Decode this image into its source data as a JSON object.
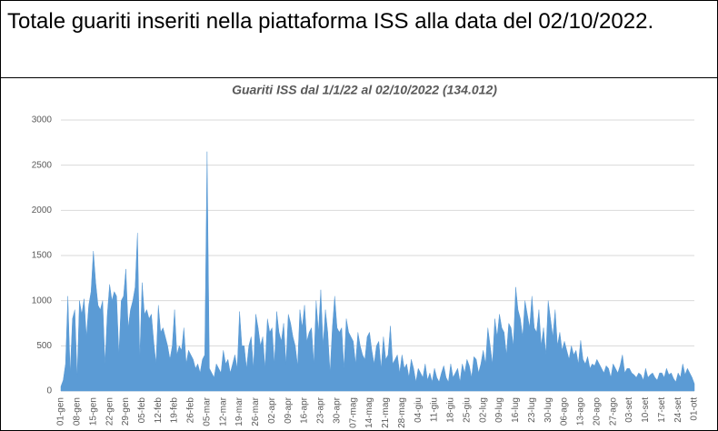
{
  "header": "Totale guariti inseriti nella piattaforma ISS alla data del 02/10/2022.",
  "chart_data": {
    "type": "area",
    "title": "Guariti ISS dal 1/1/22 al 02/10/2022 (134.012)",
    "color": "#5b9bd5",
    "grid": true,
    "ylim": [
      0,
      3000
    ],
    "yticks": [
      0,
      500,
      1000,
      1500,
      2000,
      2500,
      3000
    ],
    "categories": [
      "01-gen",
      null,
      null,
      null,
      null,
      null,
      null,
      "08-gen",
      null,
      null,
      null,
      null,
      null,
      null,
      "15-gen",
      null,
      null,
      null,
      null,
      null,
      null,
      "22-gen",
      null,
      null,
      null,
      null,
      null,
      null,
      "29-gen",
      null,
      null,
      null,
      null,
      null,
      null,
      "05-feb",
      null,
      null,
      null,
      null,
      null,
      null,
      "12-feb",
      null,
      null,
      null,
      null,
      null,
      null,
      "19-feb",
      null,
      null,
      null,
      null,
      null,
      null,
      "26-feb",
      null,
      null,
      null,
      null,
      null,
      null,
      "05-mar",
      null,
      null,
      null,
      null,
      null,
      null,
      "12-mar",
      null,
      null,
      null,
      null,
      null,
      null,
      "19-mar",
      null,
      null,
      null,
      null,
      null,
      null,
      "26-mar",
      null,
      null,
      null,
      null,
      null,
      null,
      "02-apr",
      null,
      null,
      null,
      null,
      null,
      null,
      "09-apr",
      null,
      null,
      null,
      null,
      null,
      null,
      "16-apr",
      null,
      null,
      null,
      null,
      null,
      null,
      "23-apr",
      null,
      null,
      null,
      null,
      null,
      null,
      "30-apr",
      null,
      null,
      null,
      null,
      null,
      null,
      "07-mag",
      null,
      null,
      null,
      null,
      null,
      null,
      "14-mag",
      null,
      null,
      null,
      null,
      null,
      null,
      "21-mag",
      null,
      null,
      null,
      null,
      null,
      null,
      "28-mag",
      null,
      null,
      null,
      null,
      null,
      null,
      "04-giu",
      null,
      null,
      null,
      null,
      null,
      null,
      "11-giu",
      null,
      null,
      null,
      null,
      null,
      null,
      "18-giu",
      null,
      null,
      null,
      null,
      null,
      null,
      "25-giu",
      null,
      null,
      null,
      null,
      null,
      null,
      "02-lug",
      null,
      null,
      null,
      null,
      null,
      null,
      "09-lug",
      null,
      null,
      null,
      null,
      null,
      null,
      "16-lug",
      null,
      null,
      null,
      null,
      null,
      null,
      "23-lug",
      null,
      null,
      null,
      null,
      null,
      null,
      "30-lug",
      null,
      null,
      null,
      null,
      null,
      null,
      "06-ago",
      null,
      null,
      null,
      null,
      null,
      null,
      "13-ago",
      null,
      null,
      null,
      null,
      null,
      null,
      "20-ago",
      null,
      null,
      null,
      null,
      null,
      null,
      "27-ago",
      null,
      null,
      null,
      null,
      null,
      null,
      "03-set",
      null,
      null,
      null,
      null,
      null,
      null,
      "10-set",
      null,
      null,
      null,
      null,
      null,
      null,
      "17-set",
      null,
      null,
      null,
      null,
      null,
      null,
      "24-set",
      null,
      null,
      null,
      null,
      null,
      null,
      "01-ott"
    ],
    "values": [
      50,
      120,
      300,
      1050,
      200,
      800,
      900,
      150,
      1000,
      850,
      1020,
      600,
      950,
      1100,
      1550,
      1200,
      950,
      900,
      1000,
      300,
      850,
      1180,
      1000,
      1100,
      1050,
      400,
      1000,
      1050,
      1350,
      700,
      900,
      1000,
      1150,
      1750,
      350,
      1200,
      850,
      900,
      800,
      850,
      550,
      300,
      950,
      650,
      700,
      600,
      500,
      350,
      500,
      900,
      400,
      500,
      450,
      700,
      300,
      450,
      400,
      350,
      250,
      300,
      200,
      350,
      400,
      2650,
      250,
      200,
      150,
      300,
      250,
      200,
      450,
      300,
      350,
      200,
      300,
      400,
      250,
      880,
      500,
      500,
      250,
      500,
      600,
      250,
      850,
      700,
      500,
      600,
      250,
      800,
      650,
      700,
      300,
      880,
      650,
      550,
      750,
      300,
      850,
      750,
      600,
      500,
      280,
      900,
      700,
      950,
      550,
      650,
      700,
      300,
      1000,
      650,
      1120,
      500,
      900,
      650,
      200,
      700,
      1050,
      700,
      650,
      700,
      250,
      800,
      650,
      600,
      550,
      300,
      650,
      500,
      400,
      350,
      600,
      650,
      450,
      300,
      500,
      550,
      250,
      600,
      350,
      400,
      720,
      300,
      350,
      400,
      200,
      400,
      250,
      300,
      150,
      350,
      250,
      100,
      250,
      200,
      150,
      300,
      120,
      200,
      100,
      250,
      150,
      100,
      200,
      280,
      150,
      100,
      300,
      150,
      200,
      250,
      100,
      300,
      200,
      350,
      280,
      150,
      380,
      350,
      200,
      300,
      450,
      300,
      700,
      500,
      300,
      800,
      600,
      850,
      700,
      650,
      400,
      750,
      700,
      500,
      1150,
      900,
      800,
      600,
      1000,
      850,
      700,
      1050,
      700,
      650,
      900,
      500,
      700,
      400,
      1000,
      800,
      600,
      900,
      500,
      650,
      450,
      550,
      450,
      350,
      500,
      400,
      450,
      300,
      560,
      350,
      300,
      380,
      250,
      300,
      280,
      350,
      300,
      250,
      200,
      280,
      250,
      150,
      300,
      250,
      200,
      280,
      400,
      200,
      250,
      250,
      200,
      180,
      150,
      200,
      180,
      120,
      250,
      150,
      180,
      200,
      150,
      120,
      200,
      200,
      150,
      250,
      180,
      200,
      140,
      100,
      200,
      150,
      300,
      180,
      250,
      200,
      150,
      80
    ]
  }
}
